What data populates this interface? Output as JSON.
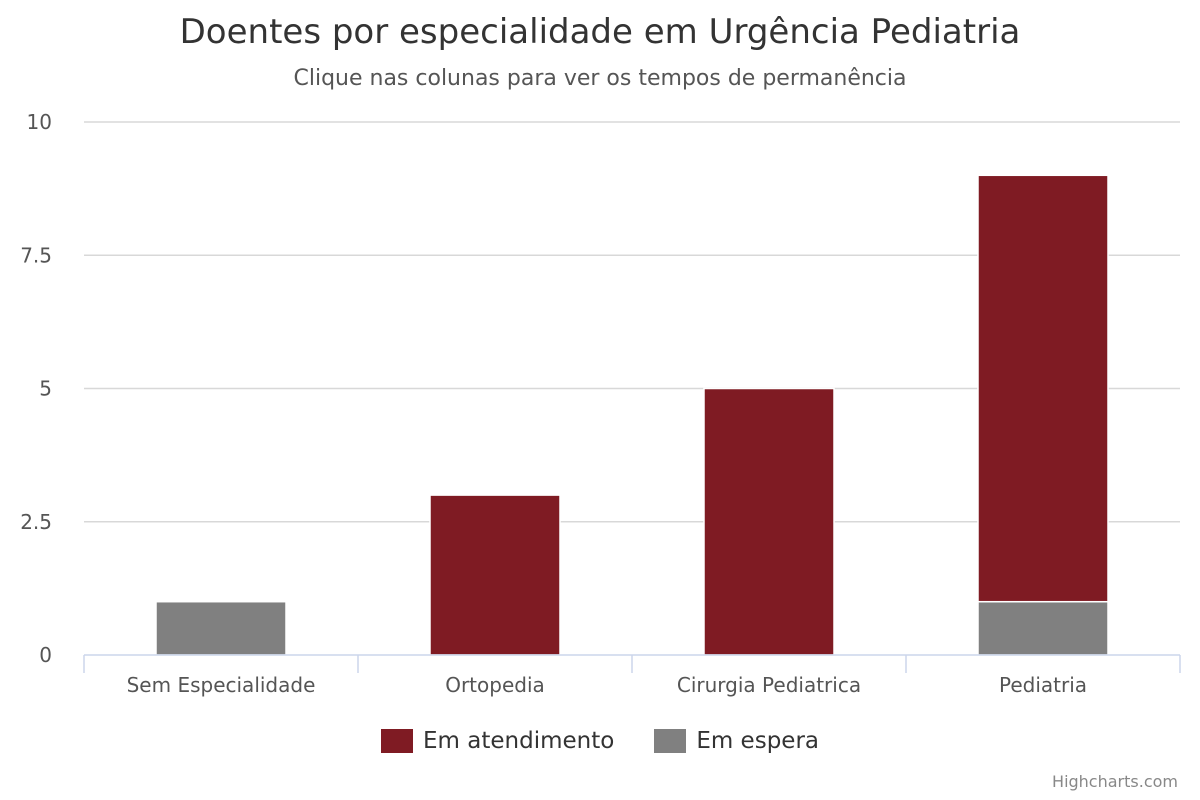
{
  "chart_data": {
    "type": "bar",
    "stacked": true,
    "title": "Doentes por especialidade em Urgência Pediatria",
    "subtitle": "Clique nas colunas para ver os tempos de permanência",
    "categories": [
      "Sem Especialidade",
      "Ortopedia",
      "Cirurgia Pediatrica",
      "Pediatria"
    ],
    "series": [
      {
        "name": "Em atendimento",
        "color": "#7f1b23",
        "values": [
          0,
          3,
          5,
          8
        ]
      },
      {
        "name": "Em espera",
        "color": "#808080",
        "values": [
          1,
          0,
          0,
          1
        ]
      }
    ],
    "ylim": [
      0,
      10
    ],
    "yticks": [
      "0",
      "2.5",
      "5",
      "7.5",
      "10"
    ],
    "yticks_values": [
      0,
      2.5,
      5,
      7.5,
      10
    ],
    "grid": true,
    "legend_position": "bottom-center"
  },
  "credits": "Highcharts.com"
}
